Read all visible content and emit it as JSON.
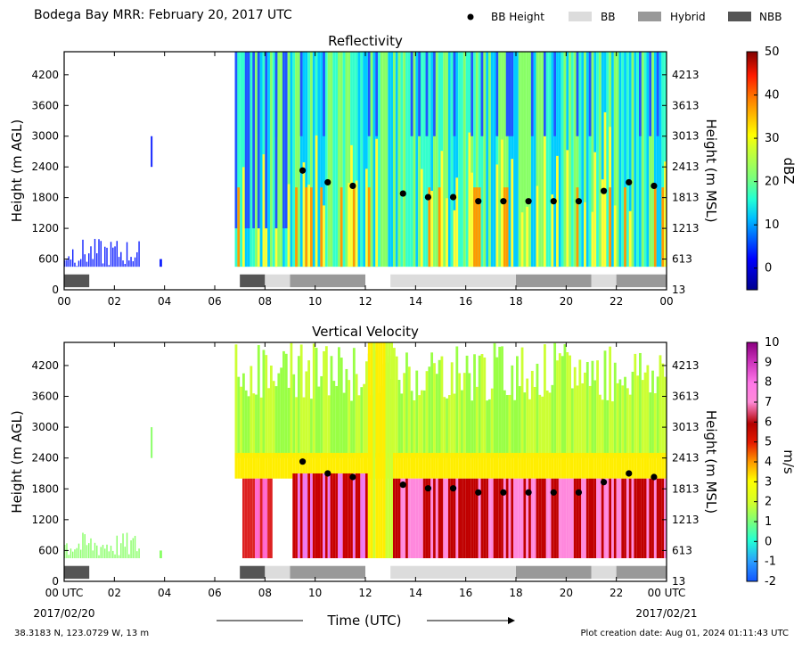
{
  "title": "Bodega Bay MRR:  February 20, 2017 UTC",
  "legend": {
    "bb_height": "BB Height",
    "bb": "BB",
    "hybrid": "Hybrid",
    "nbb": "NBB"
  },
  "colors": {
    "bb": "#dcdcdc",
    "hybrid": "#999999",
    "nbb": "#555555",
    "marker": "#000000"
  },
  "footer": {
    "location": "38.3183 N, 123.0729 W, 13 m",
    "creation": "Plot creation date: Aug 01, 2024 01:11:43 UTC"
  },
  "chart_data": [
    {
      "type": "heatmap",
      "title": "Reflectivity",
      "ylabel": "Height (m AGL)",
      "ylabel_right": "Height (m MSL)",
      "x_ticks": [
        "00",
        "02",
        "04",
        "06",
        "08",
        "10",
        "12",
        "14",
        "16",
        "18",
        "20",
        "22",
        "00"
      ],
      "y_ticks": [
        "0",
        "600",
        "1200",
        "1800",
        "2400",
        "3000",
        "3600",
        "4200"
      ],
      "y_ticks_right": [
        "13",
        "613",
        "1213",
        "1813",
        "2413",
        "3013",
        "3613",
        "4213"
      ],
      "xlim": [
        0,
        24
      ],
      "ylim": [
        0,
        4650
      ],
      "colorbar": {
        "label": "dBZ",
        "range": [
          -5,
          50
        ],
        "ticks": [
          "0",
          "10",
          "20",
          "30",
          "40",
          "50"
        ]
      },
      "bb_height": [
        {
          "x": 9.5,
          "y": 2330
        },
        {
          "x": 10.5,
          "y": 2100
        },
        {
          "x": 11.5,
          "y": 2030
        },
        {
          "x": 13.5,
          "y": 1880
        },
        {
          "x": 14.5,
          "y": 1810
        },
        {
          "x": 15.5,
          "y": 1810
        },
        {
          "x": 16.5,
          "y": 1730
        },
        {
          "x": 17.5,
          "y": 1730
        },
        {
          "x": 18.5,
          "y": 1730
        },
        {
          "x": 19.5,
          "y": 1730
        },
        {
          "x": 20.5,
          "y": 1730
        },
        {
          "x": 21.5,
          "y": 1930
        },
        {
          "x": 22.5,
          "y": 2100
        },
        {
          "x": 23.5,
          "y": 2030
        }
      ],
      "precip_type": [
        {
          "start": 0,
          "end": 1,
          "type": "nbb"
        },
        {
          "start": 7,
          "end": 8,
          "type": "nbb"
        },
        {
          "start": 8,
          "end": 9,
          "type": "bb"
        },
        {
          "start": 9,
          "end": 12,
          "type": "hybrid"
        },
        {
          "start": 13,
          "end": 18,
          "type": "bb"
        },
        {
          "start": 18,
          "end": 21,
          "type": "hybrid"
        },
        {
          "start": 21,
          "end": 22,
          "type": "bb"
        },
        {
          "start": 22,
          "end": 24,
          "type": "hybrid"
        }
      ]
    },
    {
      "type": "heatmap",
      "title": "Vertical Velocity",
      "xlabel": "Time (UTC)",
      "ylabel": "Height (m AGL)",
      "ylabel_right": "Height (m MSL)",
      "x_ticks": [
        "00 UTC",
        "02",
        "04",
        "06",
        "08",
        "10",
        "12",
        "14",
        "16",
        "18",
        "20",
        "22",
        "00 UTC"
      ],
      "x_date_start": "2017/02/20",
      "x_date_end": "2017/02/21",
      "y_ticks": [
        "0",
        "600",
        "1200",
        "1800",
        "2400",
        "3000",
        "3600",
        "4200"
      ],
      "y_ticks_right": [
        "13",
        "613",
        "1213",
        "1813",
        "2413",
        "3013",
        "3613",
        "4213"
      ],
      "xlim": [
        0,
        24
      ],
      "ylim": [
        0,
        4650
      ],
      "colorbar": {
        "label": "m/s",
        "range": [
          -2,
          10
        ],
        "ticks": [
          "-2",
          "-1",
          "0",
          "1",
          "2",
          "3",
          "4",
          "5",
          "6",
          "7",
          "8",
          "9",
          "10"
        ]
      },
      "bb_height": [
        {
          "x": 9.5,
          "y": 2330
        },
        {
          "x": 10.5,
          "y": 2100
        },
        {
          "x": 11.5,
          "y": 2030
        },
        {
          "x": 13.5,
          "y": 1880
        },
        {
          "x": 14.5,
          "y": 1810
        },
        {
          "x": 15.5,
          "y": 1810
        },
        {
          "x": 16.5,
          "y": 1730
        },
        {
          "x": 17.5,
          "y": 1730
        },
        {
          "x": 18.5,
          "y": 1730
        },
        {
          "x": 19.5,
          "y": 1730
        },
        {
          "x": 20.5,
          "y": 1730
        },
        {
          "x": 21.5,
          "y": 1930
        },
        {
          "x": 22.5,
          "y": 2100
        },
        {
          "x": 23.5,
          "y": 2030
        }
      ],
      "precip_type": [
        {
          "start": 0,
          "end": 1,
          "type": "nbb"
        },
        {
          "start": 7,
          "end": 8,
          "type": "nbb"
        },
        {
          "start": 8,
          "end": 9,
          "type": "bb"
        },
        {
          "start": 9,
          "end": 12,
          "type": "hybrid"
        },
        {
          "start": 13,
          "end": 18,
          "type": "bb"
        },
        {
          "start": 18,
          "end": 21,
          "type": "hybrid"
        },
        {
          "start": 21,
          "end": 22,
          "type": "bb"
        },
        {
          "start": 22,
          "end": 24,
          "type": "hybrid"
        }
      ]
    }
  ]
}
